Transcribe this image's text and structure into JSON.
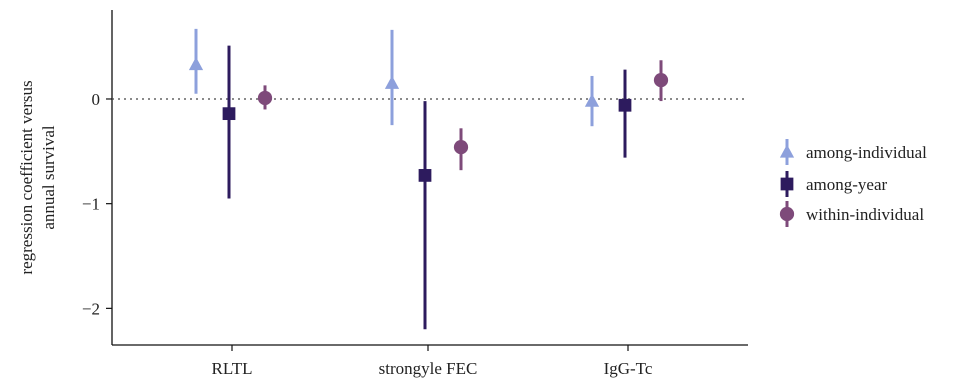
{
  "chart_data": {
    "type": "scatter",
    "title": "",
    "xlabel": "",
    "ylabel_lines": [
      "regression coefficient versus",
      "annual survival"
    ],
    "categories": [
      "RLTL",
      "strongyle FEC",
      "IgG-Tc"
    ],
    "ylim": [
      -2.35,
      0.85
    ],
    "yticks": [
      0,
      -1,
      -2
    ],
    "ytick_labels": [
      "0",
      "−1",
      "−2"
    ],
    "reference_line": 0,
    "grid": false,
    "legend_position": "right",
    "series": [
      {
        "name": "among-individual",
        "marker": "triangle",
        "color": "#8da0dc",
        "values": [
          0.33,
          0.15,
          -0.02
        ],
        "lower": [
          0.05,
          -0.25,
          -0.26
        ],
        "upper": [
          0.67,
          0.66,
          0.22
        ]
      },
      {
        "name": "among-year",
        "marker": "square",
        "color": "#2d1b5e",
        "values": [
          -0.14,
          -0.73,
          -0.06
        ],
        "lower": [
          -0.95,
          -2.2,
          -0.56
        ],
        "upper": [
          0.51,
          -0.02,
          0.28
        ]
      },
      {
        "name": "within-individual",
        "marker": "circle",
        "color": "#7e4a7a",
        "values": [
          0.01,
          -0.46,
          0.18
        ],
        "lower": [
          -0.1,
          -0.68,
          -0.02
        ],
        "upper": [
          0.13,
          -0.28,
          0.37
        ]
      }
    ]
  }
}
